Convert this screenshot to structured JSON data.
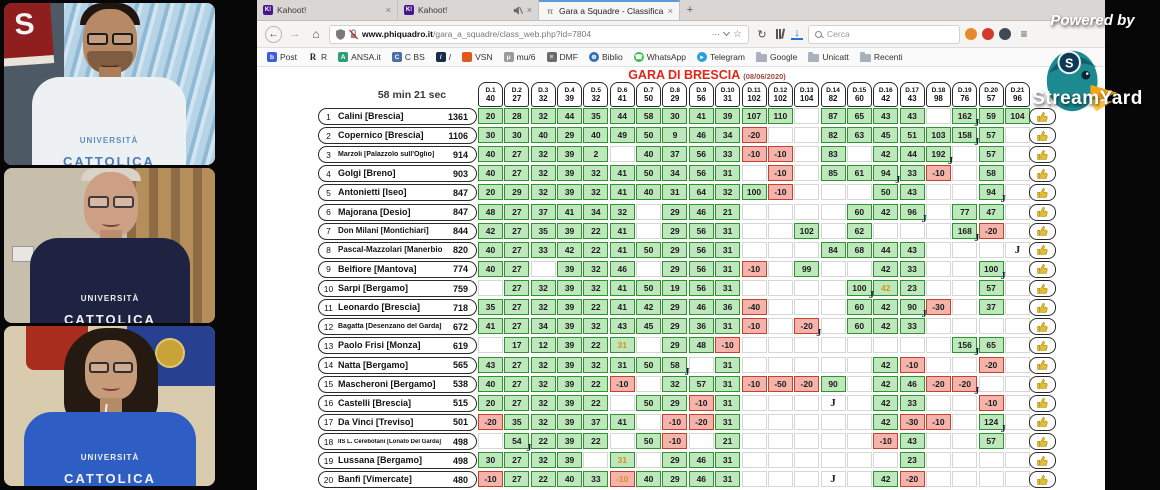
{
  "branding": {
    "powered_by": "Powered by",
    "brand": "StreamYard"
  },
  "webcams": [
    {
      "person": "man-white-shirt",
      "shirt_line1": "UNIVERSITÀ",
      "shirt_line2": "CATTOLICA"
    },
    {
      "person": "man-navy-shirt",
      "shirt_line1": "UNIVERSITÀ",
      "shirt_line2": "CATTOLICA"
    },
    {
      "person": "woman-blue-shirt",
      "shirt_line1": "UNIVERSITÀ",
      "shirt_line2": "CATTOLICA"
    }
  ],
  "browser": {
    "tabs": [
      {
        "title": "Kahoot!",
        "favicon": "K!",
        "favicon_color": "#46178f",
        "muted": false,
        "active": false
      },
      {
        "title": "Kahoot!",
        "favicon": "K!",
        "favicon_color": "#46178f",
        "muted": true,
        "active": false
      },
      {
        "title": "Gara a Squadre - Classifica -",
        "favicon": "π",
        "favicon_color": "#9a9a9a",
        "muted": false,
        "active": true
      }
    ],
    "new_tab_label": "+",
    "close_label": "×",
    "url_domain": "www.phiquadro.it",
    "url_path": "/gara_a_squadre/class_web.php?id=7804",
    "search_placeholder": "Cerca",
    "bookmarks": [
      {
        "label": "Post",
        "type": "sq",
        "color": "#3b5fd9",
        "glyph": "b"
      },
      {
        "label": "R",
        "type": "letter",
        "color": "",
        "glyph": "R"
      },
      {
        "label": "ANSA.it",
        "type": "sq",
        "color": "#2f9e77",
        "glyph": "A"
      },
      {
        "label": "C BS",
        "type": "sq",
        "color": "#4a6fa5",
        "glyph": "C"
      },
      {
        "label": "/",
        "type": "sq",
        "color": "#1a2b4a",
        "glyph": "/"
      },
      {
        "label": "VSN",
        "type": "sq",
        "color": "#e05a1e",
        "glyph": ""
      },
      {
        "label": "mu/6",
        "type": "sq",
        "color": "#9a9a9a",
        "glyph": "μ"
      },
      {
        "label": "DMF",
        "type": "sq",
        "color": "#6b6b6b",
        "glyph": "≡"
      },
      {
        "label": "Biblio",
        "type": "round",
        "color": "#2b6fb3",
        "glyph": "⊕"
      },
      {
        "label": "WhatsApp",
        "type": "round",
        "color": "#36c14f",
        "glyph": "☎"
      },
      {
        "label": "Telegram",
        "type": "round",
        "color": "#2aa0da",
        "glyph": "▸"
      },
      {
        "label": "Google",
        "type": "folder",
        "color": "#a8b1bc",
        "glyph": ""
      },
      {
        "label": "Unicatt",
        "type": "folder",
        "color": "#a8b1bc",
        "glyph": ""
      },
      {
        "label": "Recenti",
        "type": "folder",
        "color": "#a8b1bc",
        "glyph": ""
      }
    ]
  },
  "leaderboard": {
    "title": "GARA DI BRESCIA",
    "date": "(08/06/2020)",
    "timer": "58 min 21 sec",
    "colors": {
      "positive_cell": "#bce8bc",
      "negative_cell": "#f5b4ab",
      "pending_text": "#d8921c",
      "title_red": "#e02718"
    },
    "columns": [
      {
        "id": "D.1",
        "value": "40"
      },
      {
        "id": "D.2",
        "value": "27"
      },
      {
        "id": "D.3",
        "value": "32"
      },
      {
        "id": "D.4",
        "value": "39"
      },
      {
        "id": "D.5",
        "value": "32"
      },
      {
        "id": "D.6",
        "value": "41"
      },
      {
        "id": "D.7",
        "value": "50"
      },
      {
        "id": "D.8",
        "value": "29"
      },
      {
        "id": "D.9",
        "value": "56"
      },
      {
        "id": "D.10",
        "value": "31"
      },
      {
        "id": "D.11",
        "value": "102"
      },
      {
        "id": "D.12",
        "value": "102"
      },
      {
        "id": "D.13",
        "value": "104"
      },
      {
        "id": "D.14",
        "value": "82"
      },
      {
        "id": "D.15",
        "value": "60"
      },
      {
        "id": "D.16",
        "value": "42"
      },
      {
        "id": "D.17",
        "value": "43"
      },
      {
        "id": "D.18",
        "value": "98"
      },
      {
        "id": "D.19",
        "value": "76"
      },
      {
        "id": "D.20",
        "value": "57"
      },
      {
        "id": "D.21",
        "value": "96"
      }
    ],
    "rows": [
      {
        "rank": "1",
        "name": "Calini [Brescia]",
        "score": "1361",
        "cells": [
          "20",
          "28",
          "32",
          "44",
          "35",
          "44",
          "58",
          "30",
          "41",
          "39",
          "107",
          "110",
          "",
          "87",
          "65",
          "43",
          "43",
          "",
          "162J",
          "59",
          "104"
        ]
      },
      {
        "rank": "2",
        "name": "Copernico [Brescia]",
        "score": "1106",
        "cells": [
          "30",
          "30",
          "40",
          "29",
          "40",
          "49",
          "50",
          "9",
          "46",
          "34",
          "-20",
          "",
          "",
          "82",
          "63",
          "45",
          "51",
          "103",
          "158J",
          "57",
          ""
        ]
      },
      {
        "rank": "3",
        "name": "Marzoli [Palazzolo sull'Oglio]",
        "score": "914",
        "cells": [
          "40",
          "27",
          "32",
          "39",
          "2",
          "",
          "40",
          "37",
          "56",
          "33",
          "-10",
          "-10",
          "",
          "83",
          "",
          "42",
          "44",
          "192J",
          "",
          "57",
          ""
        ]
      },
      {
        "rank": "4",
        "name": "Golgi [Breno]",
        "score": "903",
        "cells": [
          "40",
          "27",
          "32",
          "39",
          "32",
          "41",
          "50",
          "34",
          "56",
          "31",
          "",
          "-10",
          "",
          "85",
          "61",
          "94J",
          "33",
          "-10",
          "",
          "58",
          ""
        ]
      },
      {
        "rank": "5",
        "name": "Antonietti [Iseo]",
        "score": "847",
        "cells": [
          "20",
          "29",
          "32",
          "39",
          "32",
          "41",
          "40",
          "31",
          "64",
          "32",
          "100",
          "-10",
          "",
          "",
          "",
          "50",
          "43",
          "",
          "",
          "94J",
          ""
        ]
      },
      {
        "rank": "6",
        "name": "Majorana [Desio]",
        "score": "847",
        "cells": [
          "48",
          "27",
          "37",
          "41",
          "34",
          "32",
          "",
          "29",
          "46",
          "21",
          "",
          "",
          "",
          "",
          "60",
          "42",
          "96J",
          "",
          "77",
          "47",
          ""
        ]
      },
      {
        "rank": "7",
        "name": "Don Milani [Montichiari]",
        "score": "844",
        "cells": [
          "42",
          "27",
          "35",
          "39",
          "22",
          "41",
          "",
          "29",
          "56",
          "31",
          "",
          "",
          "102",
          "",
          "62",
          "",
          "",
          "",
          "168J",
          "-20",
          ""
        ]
      },
      {
        "rank": "8",
        "name": "Pascal-Mazzolari [Manerbio]",
        "score": "820",
        "cells": [
          "40",
          "27",
          "33",
          "42",
          "22",
          "41",
          "50",
          "29",
          "56",
          "31",
          "",
          "",
          "",
          "84",
          "68",
          "44",
          "43",
          "",
          "",
          "",
          "J"
        ]
      },
      {
        "rank": "9",
        "name": "Belfiore [Mantova]",
        "score": "774",
        "cells": [
          "40",
          "27",
          "",
          "39",
          "32",
          "46",
          "",
          "29",
          "56",
          "31",
          "-10",
          "",
          "99",
          "",
          "",
          "42",
          "33",
          "",
          "",
          "100J",
          ""
        ]
      },
      {
        "rank": "10",
        "name": "Sarpi [Bergamo]",
        "score": "759",
        "cells": [
          "",
          "27",
          "32",
          "39",
          "32",
          "41",
          "50",
          "19",
          "56",
          "31",
          "",
          "",
          "",
          "",
          "100J",
          "*42",
          "23",
          "",
          "",
          "57",
          ""
        ]
      },
      {
        "rank": "11",
        "name": "Leonardo [Brescia]",
        "score": "718",
        "cells": [
          "35",
          "27",
          "32",
          "39",
          "22",
          "41",
          "42",
          "29",
          "46",
          "36",
          "-40",
          "",
          "",
          "",
          "60",
          "42",
          "90J",
          "-30",
          "",
          "37",
          ""
        ]
      },
      {
        "rank": "12",
        "name": "Bagatta [Desenzano del Garda]",
        "score": "672",
        "cells": [
          "41",
          "27",
          "34",
          "39",
          "32",
          "43",
          "45",
          "29",
          "36",
          "31",
          "-10",
          "",
          "-20J",
          "",
          "60",
          "42",
          "33",
          "",
          "",
          "",
          ""
        ]
      },
      {
        "rank": "13",
        "name": "Paolo Frisi [Monza]",
        "score": "619",
        "cells": [
          "",
          "17",
          "12",
          "39",
          "22",
          "*31",
          "",
          "29",
          "48",
          "-10",
          "",
          "",
          "",
          "",
          "",
          "",
          "",
          "",
          "156J",
          "65",
          ""
        ]
      },
      {
        "rank": "14",
        "name": "Natta [Bergamo]",
        "score": "565",
        "cells": [
          "43",
          "27",
          "32",
          "39",
          "32",
          "31",
          "50",
          "58J",
          "",
          "31",
          "",
          "",
          "",
          "",
          "",
          "42",
          "-10",
          "",
          "",
          "-20",
          ""
        ]
      },
      {
        "rank": "15",
        "name": "Mascheroni [Bergamo]",
        "score": "538",
        "cells": [
          "40",
          "27",
          "32",
          "39",
          "22",
          "-10",
          "",
          "32",
          "57",
          "31",
          "-10",
          "-50",
          "-20",
          "90",
          "",
          "42",
          "46",
          "-20",
          "-20J",
          "",
          ""
        ]
      },
      {
        "rank": "16",
        "name": "Castelli [Brescia]",
        "score": "515",
        "cells": [
          "20",
          "27",
          "32",
          "39",
          "22",
          "",
          "50",
          "29",
          "-10",
          "31",
          "",
          "",
          "",
          "J",
          "",
          "42",
          "33",
          "",
          "",
          "-10",
          ""
        ]
      },
      {
        "rank": "17",
        "name": "Da Vinci [Treviso]",
        "score": "501",
        "cells": [
          "-20",
          "35",
          "32",
          "39",
          "37",
          "41",
          "",
          "-10",
          "-20",
          "31",
          "",
          "",
          "",
          "",
          "",
          "42",
          "-30",
          "-10",
          "",
          "124J",
          ""
        ]
      },
      {
        "rank": "18",
        "name": "IIS L. Cerebotani [Lonato Del Garda]",
        "score": "498",
        "cells": [
          "",
          "54J",
          "22",
          "39",
          "22",
          "",
          "50",
          "-10",
          "",
          "21",
          "",
          "",
          "",
          "",
          "",
          "-10",
          "43",
          "",
          "",
          "57",
          ""
        ]
      },
      {
        "rank": "19",
        "name": "Lussana [Bergamo]",
        "score": "498",
        "cells": [
          "30",
          "27",
          "32",
          "39",
          "",
          "*31",
          "",
          "29",
          "46",
          "31",
          "",
          "",
          "",
          "",
          "",
          "",
          "23",
          "",
          "",
          "",
          ""
        ]
      },
      {
        "rank": "20",
        "name": "Banfi [Vimercate]",
        "score": "480",
        "cells": [
          "-10",
          "27",
          "22",
          "40",
          "33",
          "*-10",
          "40",
          "29",
          "46",
          "31",
          "",
          "",
          "",
          "J",
          "",
          "42",
          "-20",
          "",
          "",
          "",
          ""
        ]
      }
    ]
  }
}
